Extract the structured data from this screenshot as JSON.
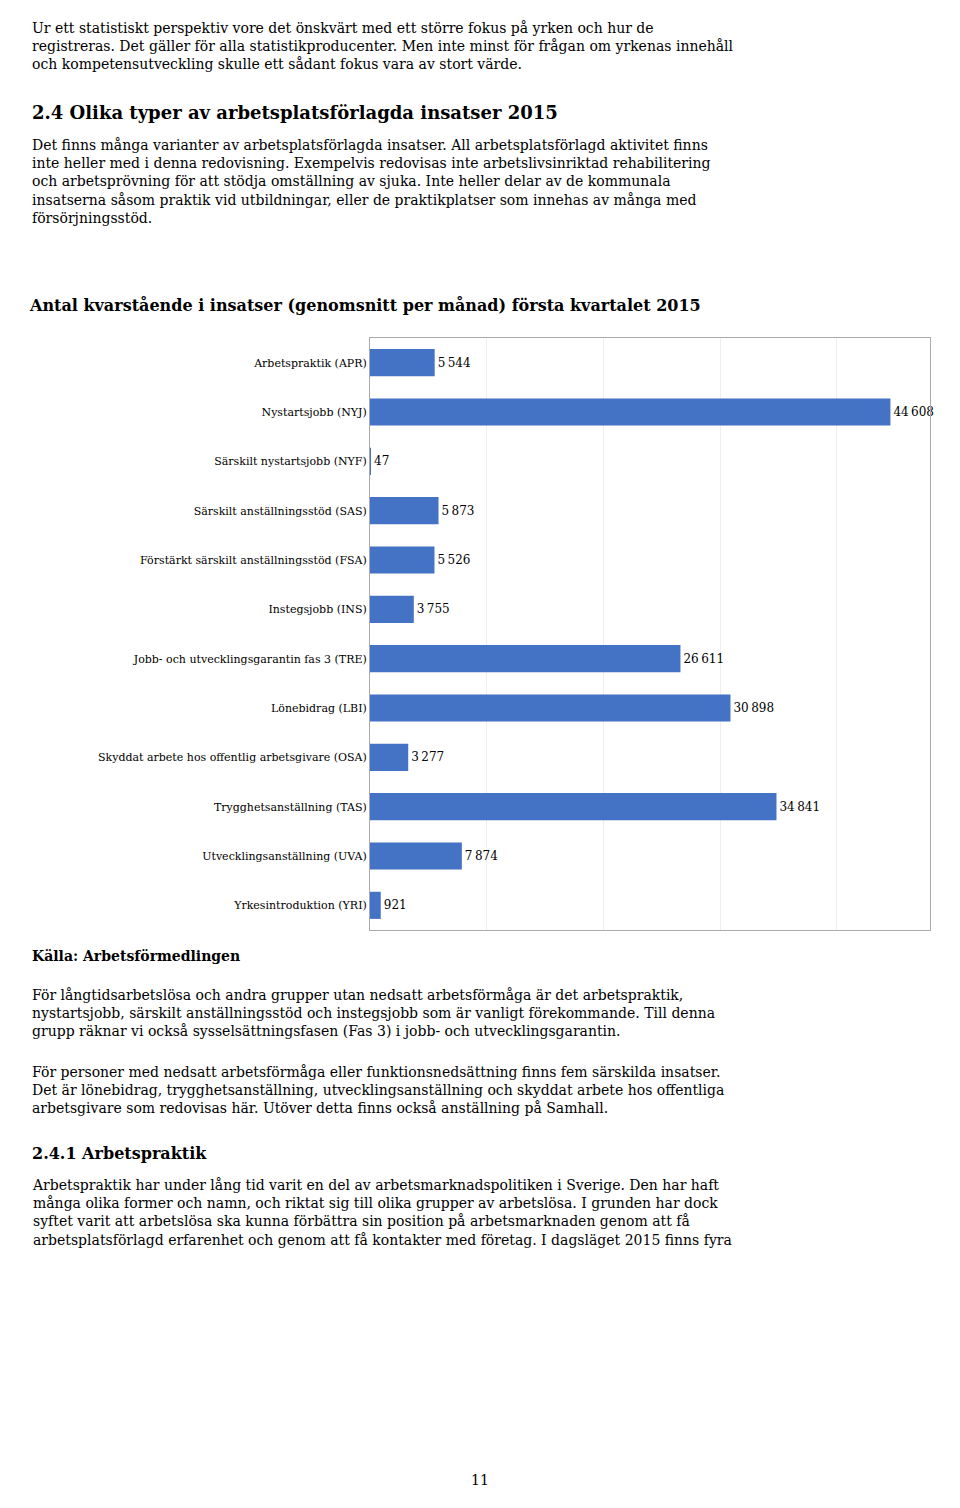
{
  "chart_data": {
    "type": "bar",
    "title": "Antal kvarstående i insatser (genomsnitt per månad) första kvartalet 2015",
    "orientation": "horizontal",
    "categories": [
      "Arbetspraktik (APR)",
      "Nystartsjobb (NYJ)",
      "Särskilt nystartsjobb (NYF)",
      "Särskilt anställningsstöd (SAS)",
      "Förstärkt särskilt anställningsstöd (FSA)",
      "Instegsjobb (INS)",
      "Jobb- och utvecklingsgarantin fas 3 (TRE)",
      "Lönebidrag (LBI)",
      "Skyddat arbete hos offentlig arbetsgivare (OSA)",
      "Trygghetsanställning (TAS)",
      "Utvecklingsanställning (UVA)",
      "Yrkesintroduktion (YRI)"
    ],
    "values": [
      5544,
      44608,
      47,
      5873,
      5526,
      3755,
      26611,
      30898,
      3277,
      34841,
      7874,
      921
    ],
    "value_labels": [
      "5 544",
      "44 608",
      "47",
      "5 873",
      "5 526",
      "3 755",
      "26 611",
      "30 898",
      "3 277",
      "34 841",
      "7 874",
      "921"
    ],
    "data_labels": true,
    "color": "#4472C4",
    "xlim": [
      0,
      48000
    ],
    "xticks": [
      0,
      10000,
      20000,
      30000,
      40000
    ],
    "grid": true,
    "tick_labels": "y",
    "annotations": [
      "Ur ett statistiskt perspektiv vore det önskvärt med ett större fokus på yrken och hur de\nregistreras. Det gäller för alla statistikproducenter. Men inte minst för frågan om yrkenas innehåll\noch kompetensutveckling skulle ett sådant fokus vara av stort värde.",
      "2.4 Olika typer av arbetsplatsförlagda insatser 2015",
      "Det finns många varianter av arbetsplatsförlagda insatser. All arbetsplatsförlagd aktivitet finns\ninte heller med i denna redovisning. Exempelvis redovisas inte arbetslivsinriktad rehabilitering\noch arbetsprövning för att stödja omställning av sjuka. Inte heller delar av de kommunala\ninsatserna såsom praktik vid utbildningar, eller de praktikplatser som innehas av många med\nförsörjningsstöd.",
      "Källa: Arbetsförmedlingen",
      "För långtidsarbetslösa och andra grupper utan nedsatt arbetsförmåga är det arbetspraktik,\nnystartsjobb, särskilt anställningsstöd och instegsjobb som är vanligt förekommande. Till denna\ngrupp räknar vi också sysselsättningsfasen (Fas 3) i jobb- och utvecklingsgarantin.",
      "För personer med nedsatt arbetsförmåga eller funktionsnedsättning finns fem särskilda insatser.\nDet är lönebidrag, trygghetsanställning, utvecklingsanställning och skyddat arbete hos offentliga\narbetsgivare som redovisas här. Utöver detta finns också anställning på Samhall.",
      "2.4.1 Arbetspraktik",
      "Arbetspraktik har under lång tid varit en del av arbetsmarknadspolitiken i Sverige. Den har haft\nmånga olika former och namn, och riktat sig till olika grupper av arbetslösa. I grunden har dock\nsyftet varit att arbetslösa ska kunna förbättra sin position på arbetsmarknaden genom att få\narbetsplatsförlagd erfarenhet och genom att få kontakter med företag. I dagsläget 2015 finns fyra",
      "11"
    ]
  }
}
